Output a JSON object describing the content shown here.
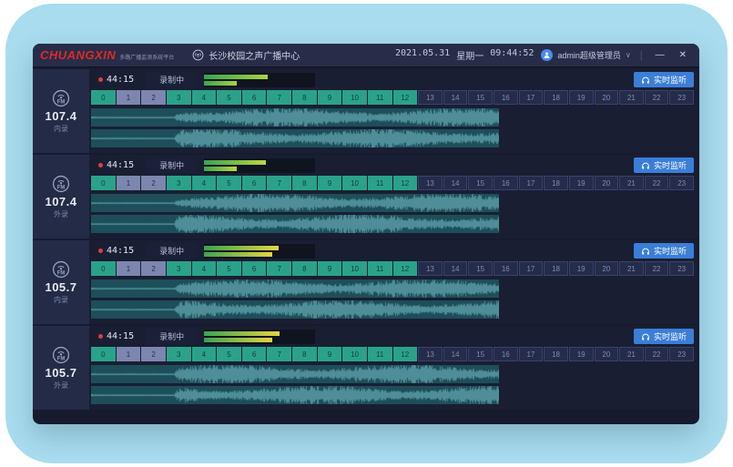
{
  "window": {
    "logo": "CHUANGXIN",
    "logo_sub": "多路广播监测系统平台",
    "title": "长沙校园之声广播中心",
    "date": "2021.05.31",
    "weekday": "星期一",
    "time": "09:44:52",
    "user": "admin超级管理员",
    "chevron": "∨",
    "separator": "|",
    "minimize": "—",
    "close": "✕"
  },
  "row_common": {
    "timer": "44:15",
    "status": "录制中",
    "listen": "实时监听"
  },
  "hours": {
    "labels": [
      "0",
      "1",
      "2",
      "3",
      "4",
      "5",
      "6",
      "7",
      "8",
      "9",
      "10",
      "11",
      "12",
      "13",
      "14",
      "15",
      "16",
      "17",
      "18",
      "19",
      "20",
      "21",
      "22",
      "23"
    ],
    "recorded_through": 12,
    "alt_cells": [
      1,
      2
    ]
  },
  "stations": [
    {
      "band": "FM",
      "frequency": "107.4",
      "source": "内录",
      "meter_top_pct": 57,
      "meter_bottom_pct": 29,
      "meter_end": "#a6d443"
    },
    {
      "band": "FM",
      "frequency": "107.4",
      "source": "外录",
      "meter_top_pct": 56,
      "meter_bottom_pct": 29,
      "meter_end": "#b9d843"
    },
    {
      "band": "FM",
      "frequency": "105.7",
      "source": "内录",
      "meter_top_pct": 67,
      "meter_bottom_pct": 61,
      "meter_end": "#e6d542"
    },
    {
      "band": "FM",
      "frequency": "105.7",
      "source": "外录",
      "meter_top_pct": 68,
      "meter_bottom_pct": 61,
      "meter_end": "#e6d542"
    }
  ],
  "colors": {
    "frame_blue": "#a8dcee",
    "window_bg": "#161b2e",
    "titlebar_bg": "#272d49",
    "accent_blue": "#3b7ed8",
    "record_red": "#e23c3c",
    "hour_teal": "#2aa289",
    "hour_alt": "#7d86ae",
    "meter_start": "#3aa44e",
    "wave_bg": "#1d4e59",
    "wave_fg": "#4f8e98"
  }
}
